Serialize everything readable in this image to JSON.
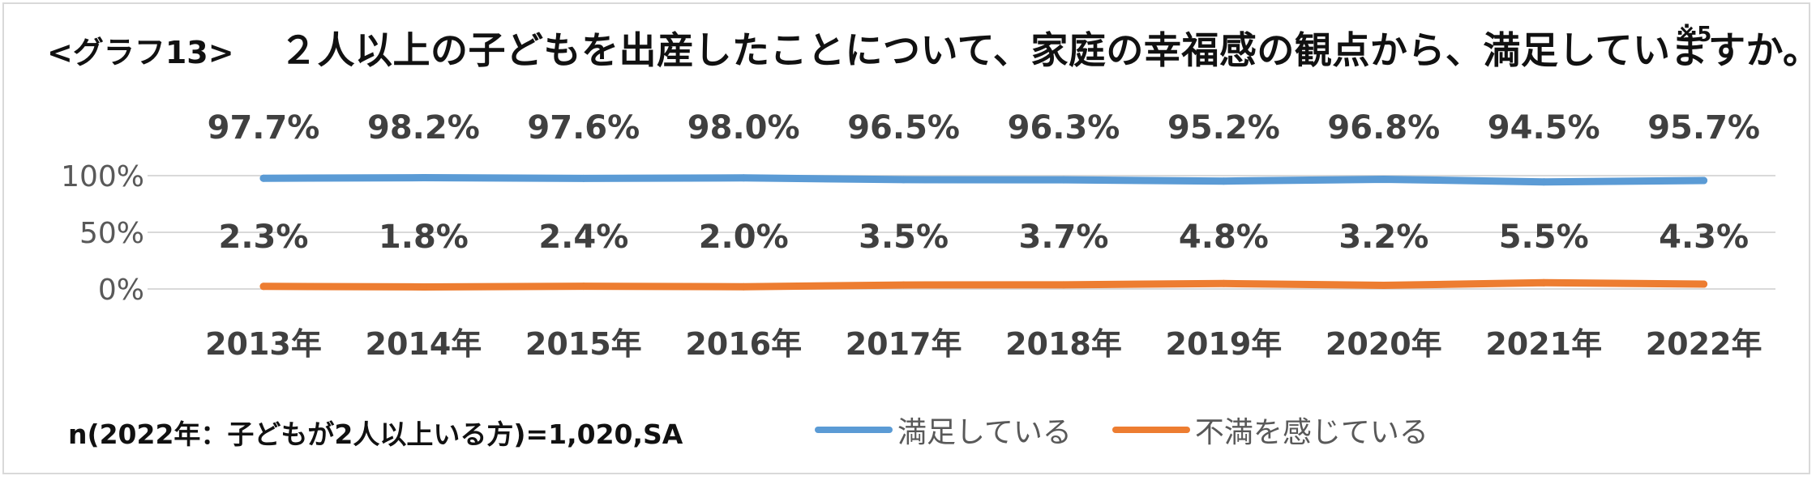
{
  "header": {
    "graph_label": "<グラフ13>",
    "title": "２人以上の子どもを出産したことについて、家庭の幸福感の観点から、満足していますか。",
    "title_note": "※5"
  },
  "footer": {
    "sample_note": "n(2022年：子どもが2人以上いる方)=1,020,SA"
  },
  "colors": {
    "satisfied": "#5B9BD5",
    "dissatisfied": "#ED7D31",
    "grid": "#d9d9d9",
    "axis_text": "#595959",
    "label_text": "#404040"
  },
  "chart_data": {
    "type": "line",
    "categories": [
      "2013年",
      "2014年",
      "2015年",
      "2016年",
      "2017年",
      "2018年",
      "2019年",
      "2020年",
      "2021年",
      "2022年"
    ],
    "series": [
      {
        "name": "満足している",
        "values": [
          97.7,
          98.2,
          97.6,
          98.0,
          96.5,
          96.3,
          95.2,
          96.8,
          94.5,
          95.7
        ],
        "labels": [
          "97.7%",
          "98.2%",
          "97.6%",
          "98.0%",
          "96.5%",
          "96.3%",
          "95.2%",
          "96.8%",
          "94.5%",
          "95.7%"
        ]
      },
      {
        "name": "不満を感じている",
        "values": [
          2.3,
          1.8,
          2.4,
          2.0,
          3.5,
          3.7,
          4.8,
          3.2,
          5.5,
          4.3
        ],
        "labels": [
          "2.3%",
          "1.8%",
          "2.4%",
          "2.0%",
          "3.5%",
          "3.7%",
          "4.8%",
          "3.2%",
          "5.5%",
          "4.3%"
        ]
      }
    ],
    "ylim": [
      0,
      100
    ],
    "yticks": [
      {
        "value": 0,
        "label": "0%"
      },
      {
        "value": 50,
        "label": "50%"
      },
      {
        "value": 100,
        "label": "100%"
      }
    ],
    "grid": true,
    "legend": "bottom"
  }
}
